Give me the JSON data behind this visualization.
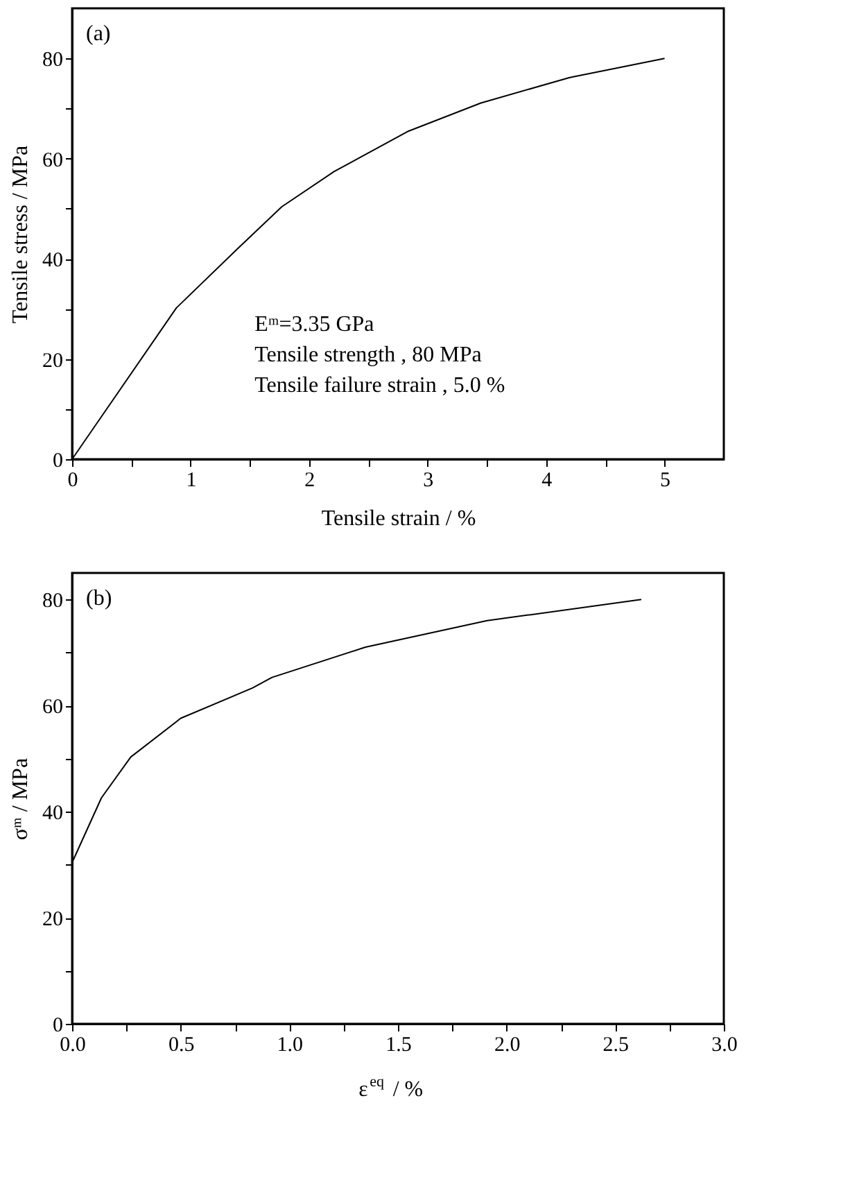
{
  "chart_data": [
    {
      "type": "line",
      "xlabel": "Tensile strain / %",
      "ylabel": "Tensile stress / MPa",
      "x": [
        0,
        0.88,
        1.4,
        1.77,
        2.21,
        2.84,
        3.45,
        4.2,
        5.0
      ],
      "series": [
        {
          "color": "#000000",
          "values": [
            0,
            30.2,
            42.1,
            50.4,
            57.4,
            65.5,
            71.1,
            76.2,
            80
          ]
        }
      ],
      "xlim": [
        0,
        5.5
      ],
      "ylim": [
        0,
        90
      ],
      "xticks": [
        0,
        {
          "value": 0.5,
          "label": null
        },
        1,
        {
          "value": 1.5,
          "label": null
        },
        2,
        {
          "value": 2.5,
          "label": null
        },
        3,
        {
          "value": 3.5,
          "label": null
        },
        4,
        {
          "value": 4.5,
          "label": null
        },
        5
      ],
      "yticks": [
        0,
        {
          "value": 10,
          "label": null
        },
        20,
        {
          "value": 30,
          "label": null
        },
        40,
        {
          "value": 50,
          "label": null
        },
        60,
        {
          "value": 70,
          "label": null
        },
        80
      ],
      "grid": false,
      "marker": "none",
      "line_style": "solid",
      "annotations": [
        "(a)",
        "Eᵐ=3.35 GPa",
        "Tensile strength , 80 MPa",
        "Tensile failure strain , 5.0 %"
      ]
    },
    {
      "type": "line",
      "xlabel": "ε$^{eq}$ / %",
      "ylabel": "σᵐ / MPa",
      "x": [
        0,
        0.135,
        0.27,
        0.5,
        0.83,
        0.92,
        1.35,
        1.91,
        2.62
      ],
      "series": [
        {
          "color": "#000000",
          "values": [
            30.4,
            42.6,
            50.3,
            57.6,
            63.3,
            65.3,
            71.0,
            76.0,
            80
          ]
        }
      ],
      "xlim": [
        0,
        3.0
      ],
      "ylim": [
        0,
        85
      ],
      "xticks": [
        {
          "value": 0,
          "label": "0.0"
        },
        {
          "value": 0.25,
          "label": null
        },
        {
          "value": 0.5,
          "label": "0.5"
        },
        {
          "value": 0.75,
          "label": null
        },
        {
          "value": 1,
          "label": "1.0"
        },
        {
          "value": 1.25,
          "label": null
        },
        {
          "value": 1.5,
          "label": "1.5"
        },
        {
          "value": 1.75,
          "label": null
        },
        {
          "value": 2,
          "label": "2.0"
        },
        {
          "value": 2.25,
          "label": null
        },
        {
          "value": 2.5,
          "label": "2.5"
        },
        {
          "value": 2.75,
          "label": null
        },
        {
          "value": 3,
          "label": "3.0"
        }
      ],
      "yticks": [
        0,
        {
          "value": 10,
          "label": null
        },
        20,
        {
          "value": 30,
          "label": null
        },
        40,
        {
          "value": 50,
          "label": null
        },
        60,
        {
          "value": 70,
          "label": null
        },
        80
      ],
      "grid": false,
      "marker": "none",
      "line_style": "solid",
      "annotations": [
        "(b)"
      ]
    }
  ]
}
